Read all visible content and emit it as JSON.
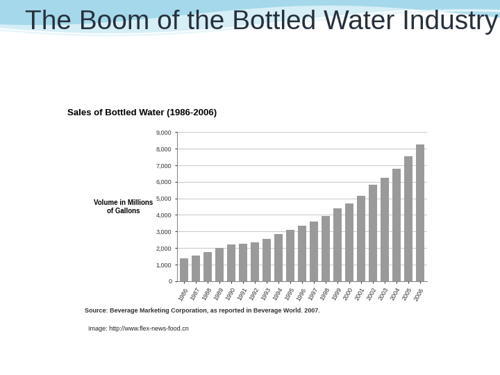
{
  "slide": {
    "title": "The Boom of the Bottled Water Industry",
    "image_credit": "Image: http://www.flex-news-food.cn"
  },
  "chart_data": {
    "type": "bar",
    "title": "Sales of Bottled Water (1986-2006)",
    "y_label": "Volume in Millions\nof Gallons",
    "source": "Source: Beverage Marketing Corporation, as reported in Beverage World. 2007.",
    "categories": [
      "1986",
      "1987",
      "1988",
      "1989",
      "1990",
      "1991",
      "1992",
      "1993",
      "1994",
      "1995",
      "1996",
      "1997",
      "1998",
      "1999",
      "2000",
      "2001",
      "2002",
      "2003",
      "2004",
      "2005",
      "2006"
    ],
    "values": [
      1400,
      1550,
      1750,
      2000,
      2200,
      2250,
      2350,
      2550,
      2850,
      3100,
      3350,
      3600,
      3950,
      4400,
      4700,
      5150,
      5800,
      6250,
      6800,
      7550,
      8250
    ],
    "color": "#9a9a9a",
    "ylim": [
      0,
      9000
    ],
    "yticks": [
      0,
      {
        "value": 1000,
        "label": "1,000"
      },
      {
        "value": 2000,
        "label": "2,000"
      },
      {
        "value": 3000,
        "label": "3,000"
      },
      {
        "value": 4000,
        "label": "4,000"
      },
      {
        "value": 5000,
        "label": "5,000"
      },
      {
        "value": 6000,
        "label": "6,000"
      },
      {
        "value": 7000,
        "label": "7,000"
      },
      {
        "value": 8000,
        "label": "8,000"
      },
      {
        "value": 9000,
        "label": "9,000"
      }
    ],
    "grid": true
  }
}
